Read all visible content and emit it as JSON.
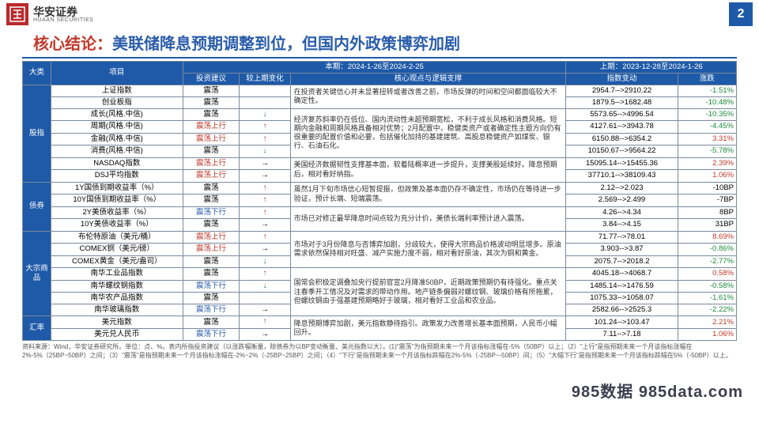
{
  "logo": {
    "cn": "华安证券",
    "en": "HUAAN SECURITIES",
    "mark": "#b8292b"
  },
  "page_number": "2",
  "title": {
    "lead": "核心结论：",
    "rest": "美联储降息预期调整到位，但国内外政策博弈加剧"
  },
  "colors": {
    "header_bg": "#1e5aa8",
    "red": "#c0392b",
    "blue": "#2a5caa",
    "green": "#1a8a3a"
  },
  "header": {
    "cat": "大类",
    "item": "项目",
    "current_period": "本期：2024-1-26至2024-2-25",
    "prev_period": "上期：2023-12-28至2024-1-26",
    "advice": "投资建议",
    "change": "较上期变化",
    "view": "核心观点与逻辑支撑",
    "idx_change": "指数变动",
    "pct": "涨跌"
  },
  "arrows": {
    "up": "↑",
    "down": "↓",
    "flat": "→"
  },
  "sections": [
    {
      "cat": "股指",
      "rows": [
        {
          "item": "上证指数",
          "adv": "震荡",
          "adv_cls": "black",
          "chg": "",
          "view_span": 2,
          "view": "在投资者关键信心并未显著扭转或者改善之前，市场反弹的时间和空间都面临较大不确定性。",
          "idx": "2954.7-->2910.22",
          "pct": "-1.51%",
          "pct_cls": "green"
        },
        {
          "item": "创业板指",
          "adv": "震荡",
          "adv_cls": "black",
          "chg": "",
          "idx": "1879.5-->1682.48",
          "pct": "-10.48%",
          "pct_cls": "green"
        },
        {
          "item": "成长(风格.中信)",
          "adv": "震荡",
          "adv_cls": "black",
          "chg": "down",
          "chg_cls": "green",
          "view_span": 4,
          "view": "经济复苏斜率仍在低位、国内流动性未超预期宽松，不利于成长风格和消费风格。短期内金融和周期风格具备相对优势；2月配置中，稳健类资产或者确定性主题方向仍有很重要的配置价值和必要，包括催化加持的基建建筑、高股息稳健资产如煤炭、银行、石油石化。",
          "idx": "5573.65-->4996.54",
          "pct": "-10.35%",
          "pct_cls": "green"
        },
        {
          "item": "周期(风格.中信)",
          "adv": "震荡上行",
          "adv_cls": "red",
          "chg": "up",
          "chg_cls": "red",
          "idx": "4127.61-->3943.78",
          "pct": "-4.45%",
          "pct_cls": "green"
        },
        {
          "item": "金融(风格.中信)",
          "adv": "震荡上行",
          "adv_cls": "red",
          "chg": "up",
          "chg_cls": "red",
          "idx": "6150.88-->6354.2",
          "pct": "3.31%",
          "pct_cls": "red"
        },
        {
          "item": "消费(风格.中信)",
          "adv": "震荡",
          "adv_cls": "black",
          "chg": "down",
          "chg_cls": "green",
          "idx": "10150.67-->9564.22",
          "pct": "-5.78%",
          "pct_cls": "green"
        },
        {
          "item": "NASDAQ指数",
          "adv": "震荡上行",
          "adv_cls": "red",
          "chg": "flat",
          "chg_cls": "black",
          "view_span": 2,
          "view": "美国经济数据韧性支撑基本面，软着陆概率进一步提升，支撑美股延续好。降息预期后，相对看好纳指。",
          "idx": "15095.14-->15455.36",
          "pct": "2.39%",
          "pct_cls": "red"
        },
        {
          "item": "DSJ平均指数",
          "adv": "震荡上行",
          "adv_cls": "red",
          "chg": "flat",
          "chg_cls": "black",
          "idx": "37710.1-->38109.43",
          "pct": "1.06%",
          "pct_cls": "red"
        }
      ]
    },
    {
      "cat": "债券",
      "rows": [
        {
          "item": "1Y国债到期收益率（%）",
          "adv": "震荡",
          "adv_cls": "black",
          "chg": "up",
          "chg_cls": "red",
          "view_span": 2,
          "view": "虽然1月下旬市场信心短暂提振，但政策及基本面仍存不确定性，市场仍在等待进一步验证，预计长端、短端震荡。",
          "idx": "2.12-->2.023",
          "pct": "-10BP",
          "pct_cls": "black"
        },
        {
          "item": "10Y国债到期收益率（%）",
          "adv": "震荡",
          "adv_cls": "black",
          "chg": "up",
          "chg_cls": "red",
          "idx": "2.569-->2.499",
          "pct": "-7BP",
          "pct_cls": "black"
        },
        {
          "item": "2Y美债收益率（%）",
          "adv": "震荡下行",
          "adv_cls": "blue",
          "chg": "up",
          "chg_cls": "red",
          "view_span": 2,
          "view": "市场已对修正最早降息时间点较为充分计价，美债长端利率预计进入震荡。",
          "idx": "4.26-->4.34",
          "pct": "8BP",
          "pct_cls": "black"
        },
        {
          "item": "10Y美债收益率（%）",
          "adv": "震荡",
          "adv_cls": "black",
          "chg": "flat",
          "chg_cls": "black",
          "idx": "3.84-->4.15",
          "pct": "31BP",
          "pct_cls": "black"
        }
      ]
    },
    {
      "cat": "大宗商品",
      "rows": [
        {
          "item": "布伦特原油（美元/桶）",
          "adv": "震荡上行",
          "adv_cls": "red",
          "chg": "up",
          "chg_cls": "red",
          "view_span": 3,
          "view": "市场对于3月份降息与否博弈加剧，分歧较大，使得大宗商品价格波动明显增多。原油需求依然保持相对旺盛、减产实施力度不弱，相对看好原油，其次为铜和黄金。",
          "idx": "71.77-->78.01",
          "pct": "8.69%",
          "pct_cls": "red"
        },
        {
          "item": "COMEX铜（美元/磅）",
          "adv": "震荡上行",
          "adv_cls": "red",
          "chg": "flat",
          "chg_cls": "black",
          "idx": "3.903-->3.87",
          "pct": "-0.86%",
          "pct_cls": "green"
        },
        {
          "item": "COMEX黄金（美元/盎司）",
          "adv": "震荡",
          "adv_cls": "black",
          "chg": "down",
          "chg_cls": "green",
          "idx": "2075.7-->2018.2",
          "pct": "-2.77%",
          "pct_cls": "green"
        },
        {
          "item": "南华工业品指数",
          "adv": "震荡",
          "adv_cls": "black",
          "chg": "up",
          "chg_cls": "red",
          "view_span": 4,
          "view": "国常会积极定调叠加央行提前官宣2月降准50BP，近期政策预期仍有待强化。重点关注春季开工情况及对需求的带动作用。地产链条偏弱对螺纹钢、玻璃价格有所拖累，但螺纹钢由于强基建预期略好于玻璃，相对看好工业品和农业品。",
          "idx": "4045.18-->4068.7",
          "pct": "0.58%",
          "pct_cls": "red"
        },
        {
          "item": "南华螺纹钢指数",
          "adv": "震荡下行",
          "adv_cls": "blue",
          "chg": "down",
          "chg_cls": "green",
          "idx": "1485.14-->1476.59",
          "pct": "-0.58%",
          "pct_cls": "green"
        },
        {
          "item": "南华农产品指数",
          "adv": "震荡",
          "adv_cls": "black",
          "chg": "",
          "idx": "1075.33-->1058.07",
          "pct": "-1.61%",
          "pct_cls": "green"
        },
        {
          "item": "南华玻璃指数",
          "adv": "震荡下行",
          "adv_cls": "blue",
          "chg": "flat",
          "chg_cls": "black",
          "idx": "2582.66-->2525.3",
          "pct": "-2.22%",
          "pct_cls": "green"
        }
      ]
    },
    {
      "cat": "汇率",
      "rows": [
        {
          "item": "美元指数",
          "adv": "震荡",
          "adv_cls": "black",
          "chg": "up",
          "chg_cls": "red",
          "view_span": 2,
          "view": "降息预期博弈加剧，美元指数静待指引。政策发力改善增长基本面预期，人民币小幅回升。",
          "idx": "101.24-->103.47",
          "pct": "2.21%",
          "pct_cls": "red"
        },
        {
          "item": "美元兑人民币",
          "adv": "震荡下行",
          "adv_cls": "blue",
          "chg": "flat",
          "chg_cls": "black",
          "idx": "7.11-->7.18",
          "pct": "1.06%",
          "pct_cls": "red"
        }
      ]
    }
  ],
  "footnote": "资料来源：Wind，华安证券研究所。单位：点、%。表内所指投资建议（以涨跌幅衡量，除债券为以BP变动衡量、美元指数以大）。(1)\"震荡\"为指预期未来一个月该指标涨幅在-5%（50BP）以上；（2）\"上行\"是指预期未来一个月该指标涨幅在2%-5%（25BP~50BP）之间；（3）\"震荡\"是指预期未来一个月该指标涨幅在-2%~2%（-25BP~25BP）之间；（4）\"下行\"是指预期未来一个月该指标跌幅在2%-5%（-25BP~-50BP）间；（5）\"大幅下行\"是指预期未来一个月该指标跌幅在5%（-50BP）以上。",
  "watermark": "985数据  985data.com"
}
